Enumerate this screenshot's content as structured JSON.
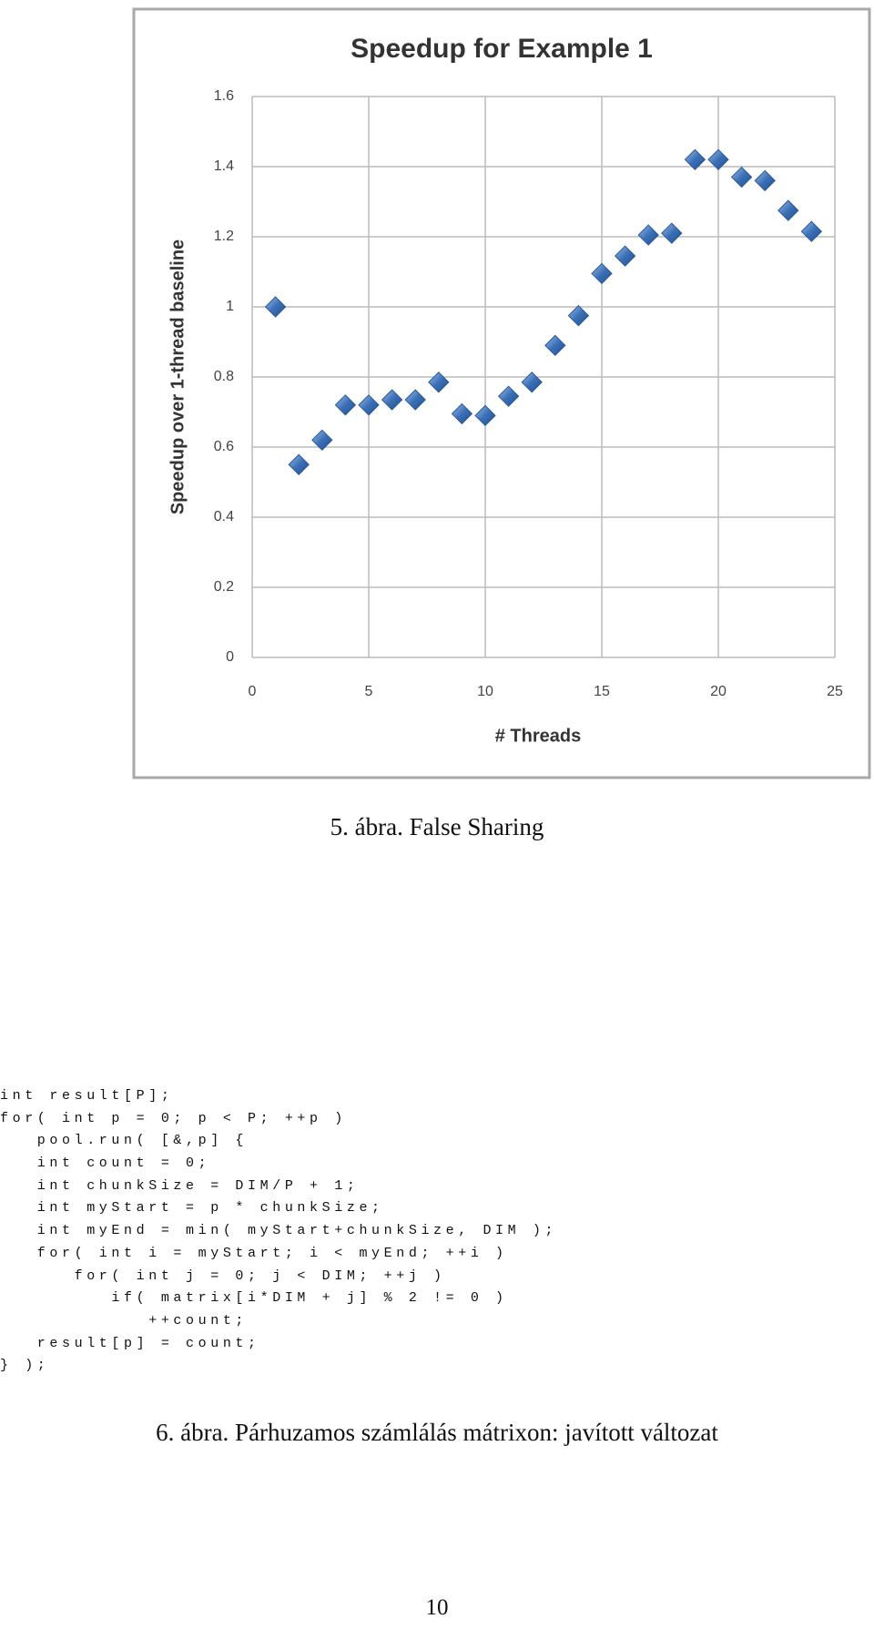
{
  "chart_data": {
    "type": "scatter",
    "title": "Speedup for Example 1",
    "x_label": "# Threads",
    "y_label": "Speedup over 1-thread baseline",
    "x": [
      1,
      2,
      3,
      4,
      5,
      6,
      7,
      8,
      9,
      10,
      11,
      12,
      13,
      14,
      15,
      16,
      17,
      18,
      19,
      20,
      21,
      22,
      23,
      24
    ],
    "values": [
      1.0,
      0.55,
      0.62,
      0.72,
      0.72,
      0.735,
      0.735,
      0.785,
      0.695,
      0.69,
      0.745,
      0.785,
      0.89,
      0.975,
      1.095,
      1.145,
      1.205,
      1.21,
      1.42,
      1.42,
      1.37,
      1.36,
      1.275,
      1.215
    ],
    "color": "#3b6fb6",
    "xlim": [
      0,
      25
    ],
    "xticks": [
      0,
      5,
      10,
      15,
      20,
      25
    ],
    "ylim": [
      0,
      1.6
    ],
    "yticks": [
      0,
      0.2,
      0.4,
      0.6,
      0.8,
      1,
      1.2,
      1.4,
      1.6
    ],
    "grid": true
  },
  "figure_caption": "5. ábra. False Sharing",
  "code": [
    "int result[P];",
    "for( int p = 0; p < P; ++p )",
    "   pool.run( [&,p] {",
    "   int count = 0;",
    "   int chunkSize = DIM/P + 1;",
    "   int myStart = p * chunkSize;",
    "   int myEnd = min( myStart+chunkSize, DIM );",
    "   for( int i = myStart; i < myEnd; ++i )",
    "      for( int j = 0; j < DIM; ++j )",
    "         if( matrix[i*DIM + j] % 2 != 0 )",
    "            ++count;",
    "   result[p] = count;",
    "} );"
  ],
  "code_caption": "6. ábra. Párhuzamos számlálás mátrixon: javított változat",
  "page_number": "10"
}
